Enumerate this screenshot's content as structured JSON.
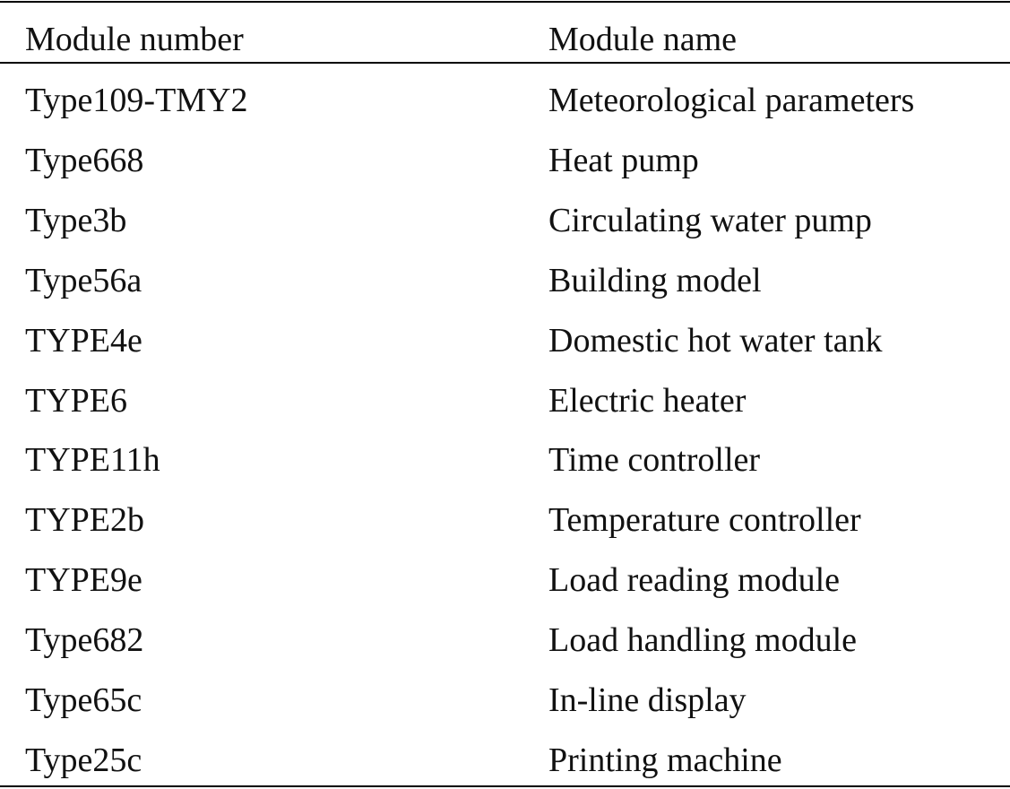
{
  "table": {
    "header": [
      "Module number",
      "Module name"
    ],
    "rows": [
      [
        "Type109-TMY2",
        "Meteorological parameters"
      ],
      [
        "Type668",
        "Heat pump"
      ],
      [
        "Type3b",
        "Circulating water pump"
      ],
      [
        "Type56a",
        "Building model"
      ],
      [
        "TYPE4e",
        "Domestic hot water tank"
      ],
      [
        "TYPE6",
        "Electric heater"
      ],
      [
        "TYPE11h",
        "Time controller"
      ],
      [
        "TYPE2b",
        "Temperature controller"
      ],
      [
        "TYPE9e",
        "Load reading module"
      ],
      [
        "Type682",
        "Load handling module"
      ],
      [
        "Type65c",
        "In-line display"
      ],
      [
        "Type25c",
        "Printing machine"
      ]
    ]
  }
}
